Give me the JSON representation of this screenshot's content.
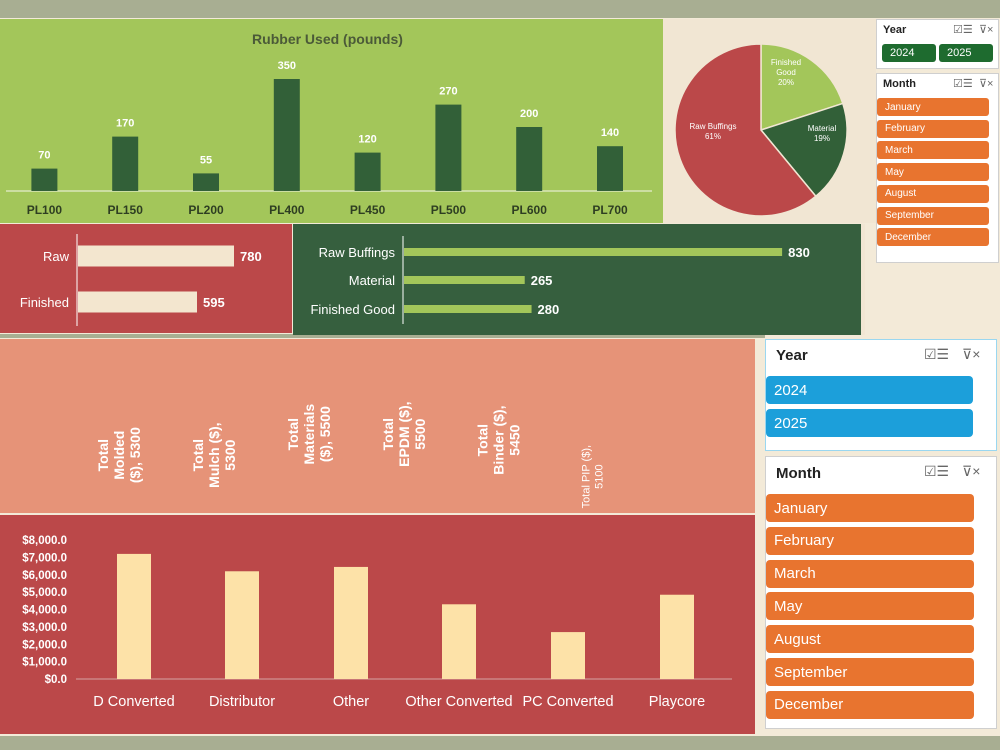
{
  "rubber_chart": {
    "title": "Rubber Used (pounds)",
    "chart_data": {
      "type": "bar",
      "title": "Rubber Used (pounds)",
      "categories": [
        "PL100",
        "PL150",
        "PL200",
        "PL400",
        "PL450",
        "PL500",
        "PL600",
        "PL700"
      ],
      "values": [
        70,
        170,
        55,
        350,
        120,
        270,
        200,
        140
      ],
      "value_labels": [
        "70",
        "170",
        "55",
        "350",
        "120",
        "270",
        "200",
        "140"
      ],
      "ylim": [
        0,
        380
      ],
      "bar_color": "#326038"
    }
  },
  "pie_chart": {
    "chart_data": {
      "type": "pie",
      "slices": [
        {
          "label": "Finished\nGood",
          "pct": "20%",
          "value": 20,
          "color": "#a3c65a"
        },
        {
          "label": "Material",
          "pct": "19%",
          "value": 19,
          "color": "#326038"
        },
        {
          "label": "Raw Buffings",
          "pct": "61%",
          "value": 61,
          "color": "#bb4849"
        }
      ]
    }
  },
  "raw_finished_chart": {
    "chart_data": {
      "type": "bar",
      "orientation": "horizontal",
      "categories": [
        "Raw",
        "Finished"
      ],
      "values": [
        780,
        595
      ],
      "value_labels": [
        "780",
        "595"
      ],
      "xlim": [
        0,
        850
      ],
      "bar_color": "#f3e6cf"
    }
  },
  "materials_chart": {
    "chart_data": {
      "type": "bar",
      "orientation": "horizontal",
      "categories": [
        "Raw Buffings",
        "Material",
        "Finished Good"
      ],
      "values": [
        830,
        265,
        280
      ],
      "value_labels": [
        "830",
        "265",
        "280"
      ],
      "xlim": [
        0,
        900
      ],
      "bar_color": "#a3c65a"
    }
  },
  "kpis": [
    {
      "text": "Total\nMolded\n($), 5300",
      "value": 5300,
      "color": "#235f7d"
    },
    {
      "text": "Total\nMulch ($),\n5300",
      "value": 5300,
      "color": "#e8742f"
    },
    {
      "text": "Total\nMaterials\n($), 5500",
      "value": 5500,
      "color": "#1e6b2f"
    },
    {
      "text": "Total\nEPDM ($),\n5500",
      "value": 5500,
      "color": "#1c9fda"
    },
    {
      "text": "Total\nBinder ($),\n5450",
      "value": 5450,
      "color": "#a3309a"
    },
    {
      "text": "Total PIP ($),\n5100",
      "value": 5100,
      "color": "#4aa631"
    }
  ],
  "sales_chart": {
    "chart_data": {
      "type": "bar",
      "categories": [
        "D Converted",
        "Distributor",
        "Other",
        "Other Converted",
        "PC Converted",
        "Playcore"
      ],
      "values": [
        7200,
        6200,
        6450,
        4300,
        2700,
        4850
      ],
      "ytick_labels": [
        "$8,000.0",
        "$7,000.0",
        "$6,000.0",
        "$5,000.0",
        "$4,000.0",
        "$3,000.0",
        "$2,000.0",
        "$1,000.0",
        "$0.0"
      ],
      "ylim": [
        0,
        8000
      ],
      "bar_color": "#fde2a8"
    }
  },
  "slicer_small": {
    "year": {
      "title": "Year",
      "items": [
        "2024",
        "2025"
      ],
      "color": "#1e6b2f"
    },
    "month": {
      "title": "Month",
      "items": [
        "January",
        "February",
        "March",
        "May",
        "August",
        "September",
        "December"
      ],
      "color": "#e8742f"
    }
  },
  "slicer_large": {
    "year": {
      "title": "Year",
      "items": [
        "2024",
        "2025"
      ],
      "color": "#1c9fda"
    },
    "month": {
      "title": "Month",
      "items": [
        "January",
        "February",
        "March",
        "May",
        "August",
        "September",
        "December"
      ],
      "color": "#e8742f"
    }
  },
  "icons": {
    "multi_select": "multi-select-icon",
    "clear_filter": "clear-filter-icon"
  }
}
